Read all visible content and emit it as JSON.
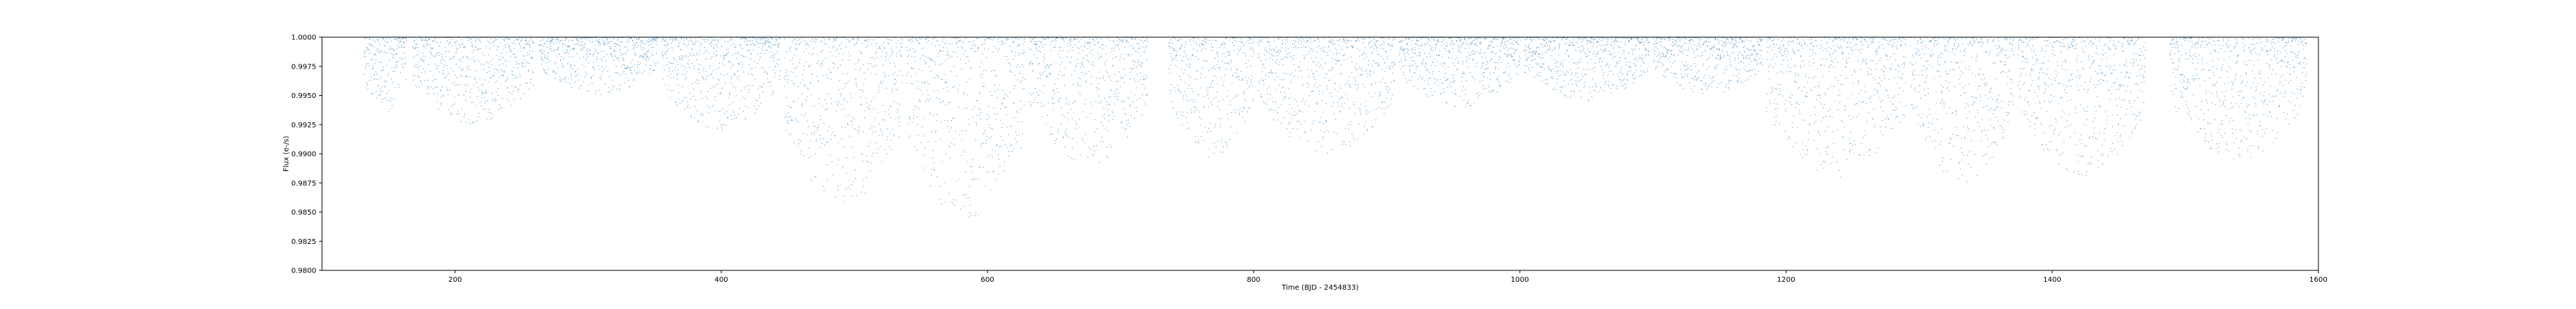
{
  "chart_data": {
    "type": "scatter",
    "title": "",
    "xlabel": "Time (BJD - 2454833)",
    "ylabel": "Flux (e-/s)",
    "xlim": [
      100,
      1600
    ],
    "ylim": [
      0.98,
      1.0
    ],
    "xticks": [
      200,
      400,
      600,
      800,
      1000,
      1200,
      1400,
      1600
    ],
    "yticks": [
      0.98,
      0.9825,
      0.985,
      0.9875,
      0.99,
      0.9925,
      0.995,
      0.9975,
      1.0
    ],
    "xtick_labels": [
      "200",
      "400",
      "600",
      "800",
      "1000",
      "1200",
      "1400",
      "1600"
    ],
    "ytick_labels": [
      "0.9800",
      "0.9825",
      "0.9850",
      "0.9875",
      "0.9900",
      "0.9925",
      "0.9950",
      "0.9975",
      "1.0000"
    ],
    "grid": false,
    "series": [
      {
        "color": "#1f77b4",
        "marker": "dot",
        "segments": [
          {
            "x_start": 131,
            "x_end": 163,
            "min_flux": 0.9935
          },
          {
            "x_start": 168,
            "x_end": 259,
            "min_flux": 0.9925
          },
          {
            "x_start": 263,
            "x_end": 352,
            "min_flux": 0.995
          },
          {
            "x_start": 355,
            "x_end": 444,
            "min_flux": 0.992
          },
          {
            "x_start": 447,
            "x_end": 536,
            "min_flux": 0.9855
          },
          {
            "x_start": 539,
            "x_end": 628,
            "min_flux": 0.984
          },
          {
            "x_start": 631,
            "x_end": 720,
            "min_flux": 0.989
          },
          {
            "x_start": 736,
            "x_end": 800,
            "min_flux": 0.9895
          },
          {
            "x_start": 803,
            "x_end": 906,
            "min_flux": 0.99
          },
          {
            "x_start": 909,
            "x_end": 1000,
            "min_flux": 0.994
          },
          {
            "x_start": 1003,
            "x_end": 1097,
            "min_flux": 0.9945
          },
          {
            "x_start": 1100,
            "x_end": 1182,
            "min_flux": 0.995
          },
          {
            "x_start": 1185,
            "x_end": 1290,
            "min_flux": 0.988
          },
          {
            "x_start": 1293,
            "x_end": 1371,
            "min_flux": 0.9875
          },
          {
            "x_start": 1374,
            "x_end": 1470,
            "min_flux": 0.988
          },
          {
            "x_start": 1488,
            "x_end": 1591,
            "min_flux": 0.9895
          }
        ]
      }
    ]
  }
}
